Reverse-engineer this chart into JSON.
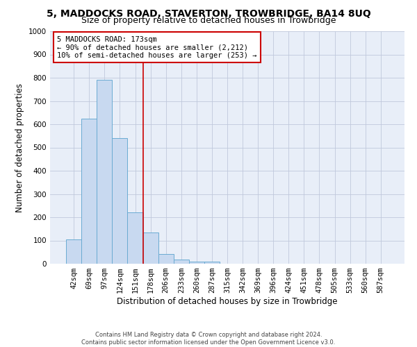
{
  "title": "5, MADDOCKS ROAD, STAVERTON, TROWBRIDGE, BA14 8UQ",
  "subtitle": "Size of property relative to detached houses in Trowbridge",
  "xlabel": "Distribution of detached houses by size in Trowbridge",
  "ylabel": "Number of detached properties",
  "bar_color": "#c8d9f0",
  "bar_edge_color": "#6aabd2",
  "background_color": "#e8eef8",
  "categories": [
    "42sqm",
    "69sqm",
    "97sqm",
    "124sqm",
    "151sqm",
    "178sqm",
    "206sqm",
    "233sqm",
    "260sqm",
    "287sqm",
    "315sqm",
    "342sqm",
    "369sqm",
    "396sqm",
    "424sqm",
    "451sqm",
    "478sqm",
    "505sqm",
    "533sqm",
    "560sqm",
    "587sqm"
  ],
  "values": [
    103,
    625,
    790,
    540,
    220,
    133,
    43,
    17,
    10,
    10,
    0,
    0,
    0,
    0,
    0,
    0,
    0,
    0,
    0,
    0,
    0
  ],
  "ylim": [
    0,
    1000
  ],
  "yticks": [
    0,
    100,
    200,
    300,
    400,
    500,
    600,
    700,
    800,
    900,
    1000
  ],
  "vline_x": 4.5,
  "vline_color": "#cc0000",
  "annotation_line1": "5 MADDOCKS ROAD: 173sqm",
  "annotation_line2": "← 90% of detached houses are smaller (2,212)",
  "annotation_line3": "10% of semi-detached houses are larger (253) →",
  "annotation_box_color": "#ffffff",
  "annotation_box_edge": "#cc0000",
  "footer_line1": "Contains HM Land Registry data © Crown copyright and database right 2024.",
  "footer_line2": "Contains public sector information licensed under the Open Government Licence v3.0.",
  "grid_color": "#c0c8dc",
  "title_fontsize": 10,
  "subtitle_fontsize": 9,
  "axis_label_fontsize": 8.5,
  "tick_fontsize": 7.5,
  "annotation_fontsize": 7.5
}
